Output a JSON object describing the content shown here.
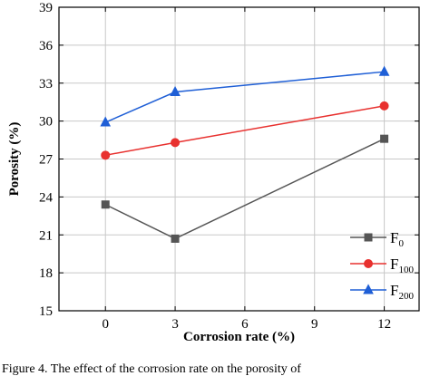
{
  "chart_data": {
    "type": "line",
    "xlabel": "Corrosion rate (%)",
    "ylabel": "Porosity (%)",
    "xlim": [
      -2,
      13.5
    ],
    "ylim": [
      15,
      39
    ],
    "xticks": [
      0,
      3,
      6,
      9,
      12
    ],
    "yticks": [
      15,
      18,
      21,
      24,
      27,
      30,
      33,
      36,
      39
    ],
    "grid": true,
    "legend_position": "bottom-right",
    "series": [
      {
        "name": "F",
        "name_sub": "0",
        "color": "#555555",
        "marker": "square",
        "x": [
          0,
          3,
          12
        ],
        "y": [
          23.4,
          20.7,
          28.6
        ]
      },
      {
        "name": "F",
        "name_sub": "100",
        "color": "#e8312f",
        "marker": "circle",
        "x": [
          0,
          3,
          12
        ],
        "y": [
          27.3,
          28.3,
          31.2
        ]
      },
      {
        "name": "F",
        "name_sub": "200",
        "color": "#1f5fd6",
        "marker": "triangle",
        "x": [
          0,
          3,
          12
        ],
        "y": [
          29.9,
          32.3,
          33.9
        ]
      }
    ]
  },
  "caption": "Figure 4. The effect of the corrosion rate on the porosity of"
}
